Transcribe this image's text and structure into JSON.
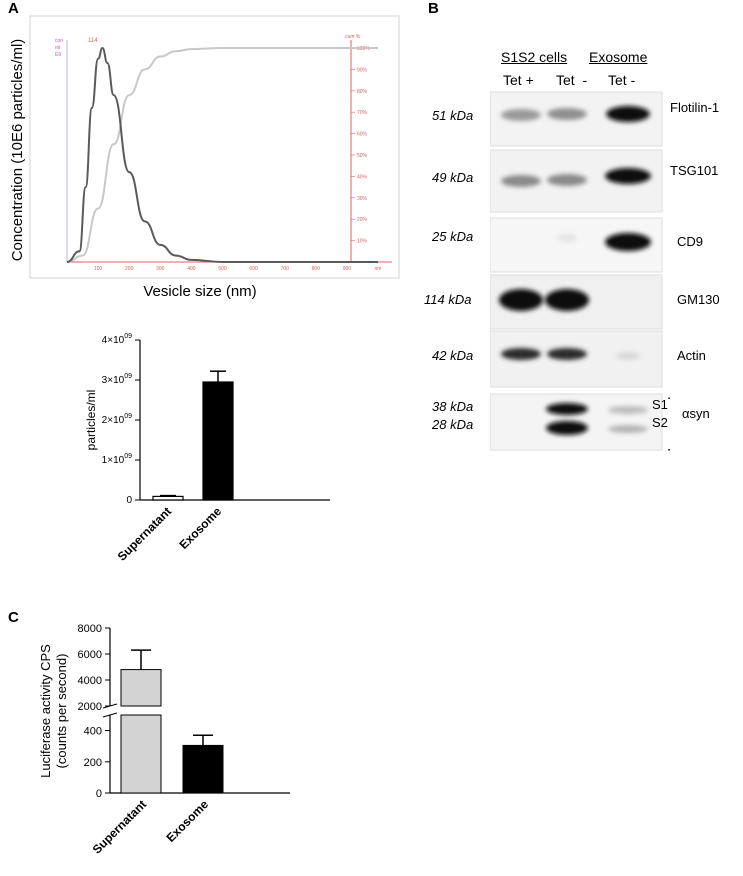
{
  "panels": {
    "a": "A",
    "b": "B",
    "c": "C"
  },
  "chart_data": [
    {
      "type": "line",
      "panel": "A",
      "xlabel": "Vesicle size (nm)",
      "ylabel": "Concentration (10E6 particles/ml)",
      "left_axis_header": [
        "con",
        "ml",
        "E6"
      ],
      "right_axis_header": "cum %",
      "peak_label": "114",
      "x_ticks": [
        "100",
        "200",
        "300",
        "400",
        "500",
        "600",
        "700",
        "800",
        "900",
        "nm"
      ],
      "right_ticks": [
        "10%",
        "20%",
        "30%",
        "40%",
        "50%",
        "60%",
        "70%",
        "80%",
        "90%",
        "100%"
      ],
      "xlim": [
        0,
        1000
      ],
      "series": [
        {
          "role": "concentration (dark curve)",
          "x": [
            0,
            40,
            60,
            80,
            100,
            114,
            130,
            150,
            200,
            250,
            300,
            350,
            400,
            500,
            700,
            1000
          ],
          "y_fraction_of_max": [
            0,
            0.05,
            0.35,
            0.72,
            0.95,
            1.0,
            0.93,
            0.78,
            0.42,
            0.19,
            0.08,
            0.03,
            0.01,
            0.0,
            0.0,
            0.0
          ]
        },
        {
          "role": "cumulative % (light curve)",
          "x": [
            0,
            50,
            100,
            150,
            200,
            250,
            300,
            350,
            400,
            500,
            700,
            1000
          ],
          "y": [
            0,
            3,
            25,
            55,
            78,
            90,
            96,
            98.5,
            99.5,
            100,
            100,
            100
          ]
        }
      ]
    },
    {
      "type": "bar",
      "panel": "A (lower)",
      "categories": [
        "Supernatant",
        "Exosome"
      ],
      "values": [
        90000000,
        2950000000
      ],
      "errors": [
        20000000,
        270000000
      ],
      "ylabel": "particles/ml",
      "ylim": [
        0,
        4000000000
      ],
      "y_ticks": [
        {
          "base": "0",
          "exp": ""
        },
        {
          "base": "1×10",
          "exp": "09"
        },
        {
          "base": "2×10",
          "exp": "09"
        },
        {
          "base": "3×10",
          "exp": "09"
        },
        {
          "base": "4×10",
          "exp": "09"
        }
      ],
      "colors": [
        "#ffffff",
        "#000000"
      ]
    },
    {
      "type": "bar",
      "panel": "C",
      "categories": [
        "Supernatant",
        "Exosome"
      ],
      "values": [
        4800,
        305
      ],
      "errors": [
        1500,
        65
      ],
      "ylabel": "Luciferase activity CPS",
      "ylabel2": "(counts per second)",
      "broken_axis": {
        "lower": [
          0,
          500
        ],
        "upper": [
          2000,
          8000
        ]
      },
      "y_ticks_lower": [
        "0",
        "200",
        "400"
      ],
      "y_ticks_upper": [
        "2000",
        "4000",
        "6000",
        "8000"
      ],
      "colors": [
        "#d3d3d3",
        "#000000"
      ]
    }
  ],
  "blot": {
    "group_headers": [
      "S1S2 cells",
      "Exosome"
    ],
    "lane_labels": [
      "Tet +",
      "Tet  -",
      "Tet -"
    ],
    "rows": [
      {
        "kda": "51 kDa",
        "protein": "Flotilin-1"
      },
      {
        "kda": "49 kDa",
        "protein": "TSG101"
      },
      {
        "kda": "25 kDa",
        "protein": "CD9"
      },
      {
        "kda": "114 kDa",
        "protein": "GM130"
      },
      {
        "kda": "42 kDa",
        "protein": "Actin"
      },
      {
        "kda": "38 kDa",
        "kda2": "28 kDa",
        "protein": "S1",
        "protein2": "S2",
        "group": "αsyn"
      }
    ]
  }
}
